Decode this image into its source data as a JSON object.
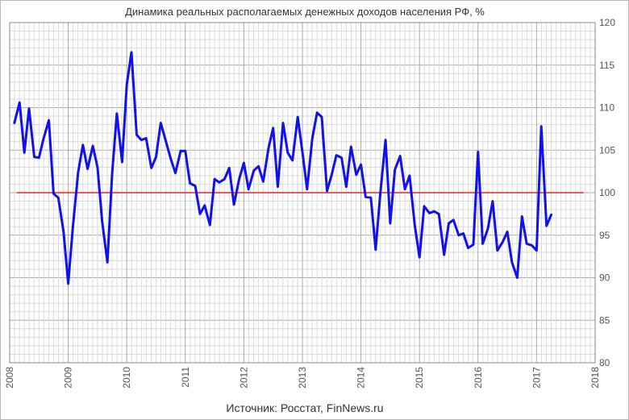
{
  "chart_data": {
    "type": "line",
    "title": "Динамика  реальных  располагаемых  денежных  доходов  населения  РФ, %",
    "source": "Источник:  Росстат, FinNews.ru",
    "xlabel": "",
    "ylabel": "",
    "xlim": [
      2008,
      2018
    ],
    "ylim": [
      80,
      120
    ],
    "x_ticks": [
      "2008",
      "2009",
      "2010",
      "2011",
      "2012",
      "2013",
      "2014",
      "2015",
      "2016",
      "2017",
      "2018"
    ],
    "y_ticks": [
      "80",
      "85",
      "90",
      "95",
      "100",
      "105",
      "110",
      "115",
      "120"
    ],
    "grid": true,
    "reference_line": {
      "y": 100,
      "x_start": 2008.12,
      "x_end": 2017.8,
      "color": "#ee2222"
    },
    "series": [
      {
        "color": "#1111ee",
        "x": [
          2008.08,
          2008.17,
          2008.25,
          2008.33,
          2008.42,
          2008.5,
          2008.58,
          2008.67,
          2008.75,
          2008.83,
          2008.92,
          2009.0,
          2009.08,
          2009.17,
          2009.25,
          2009.33,
          2009.42,
          2009.5,
          2009.58,
          2009.67,
          2009.75,
          2009.83,
          2009.92,
          2010.0,
          2010.08,
          2010.17,
          2010.25,
          2010.33,
          2010.42,
          2010.5,
          2010.58,
          2010.67,
          2010.75,
          2010.83,
          2010.92,
          2011.0,
          2011.08,
          2011.17,
          2011.25,
          2011.33,
          2011.42,
          2011.5,
          2011.58,
          2011.67,
          2011.75,
          2011.83,
          2011.92,
          2012.0,
          2012.08,
          2012.17,
          2012.25,
          2012.33,
          2012.42,
          2012.5,
          2012.58,
          2012.67,
          2012.75,
          2012.83,
          2012.92,
          2013.0,
          2013.08,
          2013.17,
          2013.25,
          2013.33,
          2013.42,
          2013.5,
          2013.58,
          2013.67,
          2013.75,
          2013.83,
          2013.92,
          2014.0,
          2014.08,
          2014.17,
          2014.25,
          2014.33,
          2014.42,
          2014.5,
          2014.58,
          2014.67,
          2014.75,
          2014.83,
          2014.92,
          2015.0,
          2015.08,
          2015.17,
          2015.25,
          2015.33,
          2015.42,
          2015.5,
          2015.58,
          2015.67,
          2015.75,
          2015.83,
          2015.92,
          2016.0,
          2016.08,
          2016.17,
          2016.25,
          2016.33,
          2016.42,
          2016.5,
          2016.58,
          2016.67,
          2016.75,
          2016.83,
          2016.92,
          2017.0,
          2017.08,
          2017.17,
          2017.25
        ],
        "y": [
          108.2,
          110.6,
          104.7,
          109.9,
          104.2,
          104.1,
          106.4,
          108.5,
          99.9,
          99.4,
          95.4,
          89.3,
          96.0,
          102.4,
          105.6,
          102.8,
          105.5,
          103.0,
          96.6,
          91.8,
          102.3,
          109.3,
          103.6,
          112.7,
          116.5,
          106.8,
          106.2,
          106.4,
          102.9,
          104.2,
          108.2,
          106.0,
          104.0,
          102.3,
          104.9,
          104.9,
          101.1,
          100.8,
          97.5,
          98.5,
          96.2,
          101.6,
          101.2,
          101.6,
          102.9,
          98.6,
          101.6,
          103.5,
          100.4,
          102.6,
          103.1,
          101.3,
          105.2,
          107.6,
          100.7,
          108.2,
          104.7,
          103.8,
          108.9,
          104.8,
          100.4,
          106.4,
          109.4,
          108.9,
          100.2,
          102.1,
          104.4,
          104.1,
          100.7,
          105.4,
          102.1,
          103.3,
          99.5,
          99.4,
          93.3,
          99.9,
          106.2,
          96.4,
          102.7,
          104.3,
          100.4,
          102.0,
          96.1,
          92.4,
          98.4,
          97.6,
          97.8,
          97.5,
          92.7,
          96.4,
          96.8,
          95.0,
          95.2,
          93.5,
          93.9,
          104.8,
          94.0,
          95.8,
          99.0,
          93.2,
          94.2,
          95.4,
          91.8,
          90.0,
          97.2,
          94.0,
          93.8,
          93.2,
          107.8,
          96.1,
          97.4
        ]
      }
    ]
  }
}
